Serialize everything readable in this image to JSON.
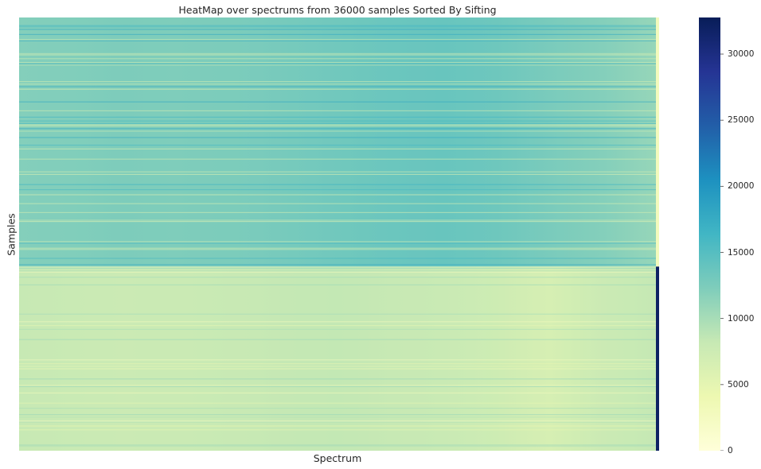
{
  "chart_data": {
    "type": "heatmap",
    "title": "HeatMap over spectrums from 36000 samples Sorted By Sifting",
    "xlabel": "Spectrum",
    "ylabel": "Samples",
    "colormap": "YlGnBu",
    "colorbar": {
      "min": 0,
      "max": 32767,
      "ticks": [
        0,
        5000,
        10000,
        15000,
        20000,
        25000,
        30000
      ],
      "tick_labels": [
        "0",
        "5000",
        "10000",
        "15000",
        "20000",
        "25000",
        "30000"
      ]
    },
    "groups": [
      {
        "sample_fraction": [
          0,
          0.575
        ],
        "typical_value": 12500,
        "spectrum_profile": [
          12000,
          12200,
          12400,
          12300,
          12500,
          12800,
          13200,
          13600,
          13800,
          13400,
          12600,
          12000,
          11000
        ],
        "last_column_value": 3000
      },
      {
        "sample_fraction": [
          0.575,
          1
        ],
        "typical_value": 7500,
        "spectrum_profile": [
          8200,
          8000,
          7800,
          7900,
          8100,
          8300,
          8400,
          8200,
          8000,
          7500,
          6600,
          7800,
          8300
        ],
        "last_column_value": 32000
      }
    ]
  }
}
